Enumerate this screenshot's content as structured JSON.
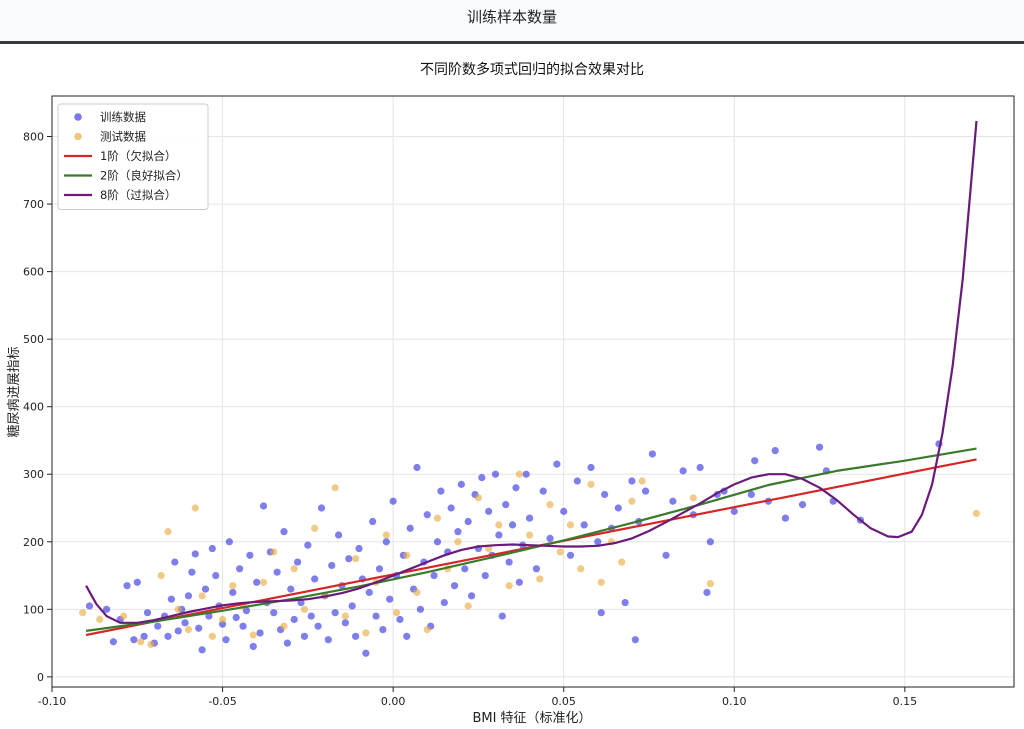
{
  "page": {
    "title": "训练样本数量"
  },
  "colors": {
    "train": "#2f2fe0",
    "test": "#e8a93e",
    "deg1": "#d62728",
    "deg2": "#3b7a2a",
    "deg8": "#6a1b7a",
    "grid": "#e4e4e4"
  },
  "chart_data": {
    "type": "scatter",
    "title": "不同阶数多项式回归的拟合效果对比",
    "xlabel": "BMI 特征（标准化）",
    "ylabel": "糖尿病进展指标",
    "xlim": [
      -0.1,
      0.182
    ],
    "ylim": [
      -15,
      860
    ],
    "xticks": [
      -0.1,
      -0.05,
      0.0,
      0.05,
      0.1,
      0.15
    ],
    "xtick_labels": [
      "-0.10",
      "-0.05",
      "0.00",
      "0.05",
      "0.10",
      "0.15"
    ],
    "yticks": [
      0,
      100,
      200,
      300,
      400,
      500,
      600,
      700,
      800
    ],
    "ytick_labels": [
      "0",
      "100",
      "200",
      "300",
      "400",
      "500",
      "600",
      "700",
      "800"
    ],
    "grid": true,
    "legend_position": "top-left",
    "legend": [
      {
        "label": "训练数据",
        "kind": "marker",
        "color": "#2f2fe0"
      },
      {
        "label": "测试数据",
        "kind": "marker",
        "color": "#e8a93e"
      },
      {
        "label": "1阶（欠拟合）",
        "kind": "line",
        "color": "#d62728"
      },
      {
        "label": "2阶（良好拟合）",
        "kind": "line",
        "color": "#3b7a2a"
      },
      {
        "label": "8阶（过拟合）",
        "kind": "line",
        "color": "#6a1b7a"
      }
    ],
    "scatter_series": [
      {
        "name": "训练数据",
        "color": "#2f2fe0",
        "points": [
          [
            -0.089,
            105
          ],
          [
            -0.084,
            100
          ],
          [
            -0.082,
            52
          ],
          [
            -0.08,
            85
          ],
          [
            -0.078,
            135
          ],
          [
            -0.076,
            55
          ],
          [
            -0.075,
            140
          ],
          [
            -0.073,
            60
          ],
          [
            -0.072,
            95
          ],
          [
            -0.07,
            50
          ],
          [
            -0.069,
            75
          ],
          [
            -0.067,
            90
          ],
          [
            -0.066,
            60
          ],
          [
            -0.065,
            115
          ],
          [
            -0.064,
            170
          ],
          [
            -0.063,
            68
          ],
          [
            -0.062,
            100
          ],
          [
            -0.061,
            80
          ],
          [
            -0.06,
            120
          ],
          [
            -0.059,
            155
          ],
          [
            -0.058,
            182
          ],
          [
            -0.057,
            72
          ],
          [
            -0.056,
            40
          ],
          [
            -0.055,
            130
          ],
          [
            -0.054,
            90
          ],
          [
            -0.053,
            190
          ],
          [
            -0.052,
            150
          ],
          [
            -0.051,
            105
          ],
          [
            -0.05,
            78
          ],
          [
            -0.049,
            55
          ],
          [
            -0.048,
            200
          ],
          [
            -0.047,
            125
          ],
          [
            -0.046,
            88
          ],
          [
            -0.045,
            160
          ],
          [
            -0.044,
            75
          ],
          [
            -0.043,
            98
          ],
          [
            -0.042,
            180
          ],
          [
            -0.041,
            45
          ],
          [
            -0.04,
            140
          ],
          [
            -0.039,
            65
          ],
          [
            -0.038,
            253
          ],
          [
            -0.037,
            110
          ],
          [
            -0.036,
            185
          ],
          [
            -0.035,
            95
          ],
          [
            -0.034,
            155
          ],
          [
            -0.033,
            70
          ],
          [
            -0.032,
            215
          ],
          [
            -0.031,
            50
          ],
          [
            -0.03,
            130
          ],
          [
            -0.029,
            85
          ],
          [
            -0.028,
            170
          ],
          [
            -0.027,
            110
          ],
          [
            -0.026,
            60
          ],
          [
            -0.025,
            195
          ],
          [
            -0.024,
            90
          ],
          [
            -0.023,
            145
          ],
          [
            -0.022,
            75
          ],
          [
            -0.021,
            250
          ],
          [
            -0.02,
            120
          ],
          [
            -0.019,
            55
          ],
          [
            -0.018,
            165
          ],
          [
            -0.017,
            95
          ],
          [
            -0.016,
            210
          ],
          [
            -0.015,
            135
          ],
          [
            -0.014,
            80
          ],
          [
            -0.013,
            175
          ],
          [
            -0.012,
            105
          ],
          [
            -0.011,
            60
          ],
          [
            -0.01,
            190
          ],
          [
            -0.009,
            145
          ],
          [
            -0.008,
            35
          ],
          [
            -0.007,
            125
          ],
          [
            -0.006,
            230
          ],
          [
            -0.005,
            90
          ],
          [
            -0.004,
            160
          ],
          [
            -0.003,
            70
          ],
          [
            -0.002,
            200
          ],
          [
            -0.001,
            115
          ],
          [
            0.0,
            260
          ],
          [
            0.001,
            150
          ],
          [
            0.002,
            85
          ],
          [
            0.003,
            180
          ],
          [
            0.004,
            60
          ],
          [
            0.005,
            220
          ],
          [
            0.006,
            130
          ],
          [
            0.007,
            310
          ],
          [
            0.008,
            100
          ],
          [
            0.009,
            170
          ],
          [
            0.01,
            240
          ],
          [
            0.011,
            75
          ],
          [
            0.012,
            150
          ],
          [
            0.013,
            200
          ],
          [
            0.014,
            275
          ],
          [
            0.015,
            110
          ],
          [
            0.016,
            185
          ],
          [
            0.017,
            250
          ],
          [
            0.018,
            135
          ],
          [
            0.019,
            215
          ],
          [
            0.02,
            285
          ],
          [
            0.021,
            160
          ],
          [
            0.022,
            230
          ],
          [
            0.023,
            120
          ],
          [
            0.024,
            270
          ],
          [
            0.025,
            190
          ],
          [
            0.026,
            295
          ],
          [
            0.027,
            150
          ],
          [
            0.028,
            245
          ],
          [
            0.029,
            180
          ],
          [
            0.03,
            300
          ],
          [
            0.031,
            210
          ],
          [
            0.032,
            90
          ],
          [
            0.033,
            255
          ],
          [
            0.034,
            170
          ],
          [
            0.035,
            225
          ],
          [
            0.036,
            280
          ],
          [
            0.037,
            140
          ],
          [
            0.038,
            195
          ],
          [
            0.039,
            300
          ],
          [
            0.04,
            235
          ],
          [
            0.042,
            160
          ],
          [
            0.044,
            275
          ],
          [
            0.046,
            205
          ],
          [
            0.048,
            315
          ],
          [
            0.05,
            245
          ],
          [
            0.052,
            180
          ],
          [
            0.054,
            290
          ],
          [
            0.056,
            225
          ],
          [
            0.058,
            310
          ],
          [
            0.06,
            200
          ],
          [
            0.061,
            95
          ],
          [
            0.062,
            270
          ],
          [
            0.064,
            220
          ],
          [
            0.066,
            250
          ],
          [
            0.068,
            110
          ],
          [
            0.07,
            290
          ],
          [
            0.071,
            55
          ],
          [
            0.072,
            230
          ],
          [
            0.074,
            275
          ],
          [
            0.076,
            330
          ],
          [
            0.08,
            180
          ],
          [
            0.082,
            260
          ],
          [
            0.085,
            305
          ],
          [
            0.088,
            240
          ],
          [
            0.09,
            310
          ],
          [
            0.092,
            125
          ],
          [
            0.093,
            200
          ],
          [
            0.095,
            270
          ],
          [
            0.097,
            275
          ],
          [
            0.1,
            245
          ],
          [
            0.105,
            270
          ],
          [
            0.106,
            320
          ],
          [
            0.11,
            260
          ],
          [
            0.112,
            335
          ],
          [
            0.115,
            235
          ],
          [
            0.12,
            255
          ],
          [
            0.125,
            340
          ],
          [
            0.127,
            305
          ],
          [
            0.129,
            260
          ],
          [
            0.137,
            232
          ],
          [
            0.16,
            345
          ]
        ]
      },
      {
        "name": "测试数据",
        "color": "#e8a93e",
        "points": [
          [
            -0.091,
            95
          ],
          [
            -0.086,
            85
          ],
          [
            -0.079,
            90
          ],
          [
            -0.074,
            52
          ],
          [
            -0.071,
            48
          ],
          [
            -0.068,
            150
          ],
          [
            -0.066,
            215
          ],
          [
            -0.063,
            100
          ],
          [
            -0.06,
            70
          ],
          [
            -0.058,
            250
          ],
          [
            -0.056,
            120
          ],
          [
            -0.053,
            60
          ],
          [
            -0.05,
            85
          ],
          [
            -0.047,
            135
          ],
          [
            -0.044,
            105
          ],
          [
            -0.041,
            62
          ],
          [
            -0.038,
            140
          ],
          [
            -0.035,
            185
          ],
          [
            -0.032,
            75
          ],
          [
            -0.029,
            160
          ],
          [
            -0.026,
            100
          ],
          [
            -0.023,
            220
          ],
          [
            -0.02,
            120
          ],
          [
            -0.017,
            280
          ],
          [
            -0.014,
            90
          ],
          [
            -0.011,
            175
          ],
          [
            -0.008,
            65
          ],
          [
            -0.005,
            140
          ],
          [
            -0.002,
            210
          ],
          [
            0.001,
            95
          ],
          [
            0.004,
            180
          ],
          [
            0.007,
            125
          ],
          [
            0.01,
            70
          ],
          [
            0.013,
            235
          ],
          [
            0.016,
            160
          ],
          [
            0.019,
            200
          ],
          [
            0.022,
            105
          ],
          [
            0.025,
            265
          ],
          [
            0.028,
            190
          ],
          [
            0.031,
            225
          ],
          [
            0.034,
            135
          ],
          [
            0.037,
            300
          ],
          [
            0.04,
            210
          ],
          [
            0.043,
            145
          ],
          [
            0.046,
            255
          ],
          [
            0.049,
            185
          ],
          [
            0.052,
            225
          ],
          [
            0.055,
            160
          ],
          [
            0.058,
            285
          ],
          [
            0.061,
            140
          ],
          [
            0.064,
            200
          ],
          [
            0.067,
            170
          ],
          [
            0.07,
            260
          ],
          [
            0.073,
            290
          ],
          [
            0.088,
            265
          ],
          [
            0.093,
            138
          ],
          [
            0.171,
            242
          ]
        ]
      }
    ],
    "line_series": [
      {
        "name": "1阶（欠拟合）",
        "color": "#d62728",
        "points": [
          [
            -0.09,
            62
          ],
          [
            0.171,
            322
          ]
        ]
      },
      {
        "name": "2阶（良好拟合）",
        "color": "#3b7a2a",
        "points": [
          [
            -0.09,
            68
          ],
          [
            -0.07,
            82
          ],
          [
            -0.05,
            98
          ],
          [
            -0.03,
            115
          ],
          [
            -0.01,
            134
          ],
          [
            0.01,
            155
          ],
          [
            0.03,
            178
          ],
          [
            0.05,
            202
          ],
          [
            0.07,
            228
          ],
          [
            0.09,
            255
          ],
          [
            0.11,
            284
          ],
          [
            0.13,
            305
          ],
          [
            0.15,
            320
          ],
          [
            0.171,
            338
          ]
        ]
      },
      {
        "name": "8阶（过拟合）",
        "color": "#6a1b7a",
        "points": [
          [
            -0.09,
            135
          ],
          [
            -0.087,
            108
          ],
          [
            -0.084,
            90
          ],
          [
            -0.08,
            80
          ],
          [
            -0.075,
            80
          ],
          [
            -0.07,
            84
          ],
          [
            -0.065,
            90
          ],
          [
            -0.06,
            96
          ],
          [
            -0.055,
            101
          ],
          [
            -0.05,
            106
          ],
          [
            -0.045,
            109
          ],
          [
            -0.04,
            111
          ],
          [
            -0.035,
            112
          ],
          [
            -0.03,
            113
          ],
          [
            -0.025,
            115
          ],
          [
            -0.02,
            119
          ],
          [
            -0.015,
            124
          ],
          [
            -0.01,
            131
          ],
          [
            -0.005,
            140
          ],
          [
            0.0,
            150
          ],
          [
            0.005,
            160
          ],
          [
            0.01,
            170
          ],
          [
            0.015,
            180
          ],
          [
            0.02,
            188
          ],
          [
            0.025,
            193
          ],
          [
            0.03,
            195
          ],
          [
            0.035,
            196
          ],
          [
            0.04,
            195
          ],
          [
            0.045,
            194
          ],
          [
            0.05,
            193
          ],
          [
            0.055,
            193
          ],
          [
            0.06,
            194
          ],
          [
            0.065,
            198
          ],
          [
            0.07,
            205
          ],
          [
            0.075,
            216
          ],
          [
            0.08,
            229
          ],
          [
            0.085,
            243
          ],
          [
            0.09,
            257
          ],
          [
            0.095,
            272
          ],
          [
            0.1,
            285
          ],
          [
            0.105,
            295
          ],
          [
            0.11,
            300
          ],
          [
            0.115,
            300
          ],
          [
            0.12,
            293
          ],
          [
            0.125,
            280
          ],
          [
            0.13,
            262
          ],
          [
            0.135,
            240
          ],
          [
            0.14,
            220
          ],
          [
            0.145,
            208
          ],
          [
            0.148,
            207
          ],
          [
            0.152,
            215
          ],
          [
            0.155,
            240
          ],
          [
            0.158,
            285
          ],
          [
            0.161,
            360
          ],
          [
            0.164,
            460
          ],
          [
            0.167,
            590
          ],
          [
            0.171,
            823
          ]
        ]
      }
    ]
  }
}
